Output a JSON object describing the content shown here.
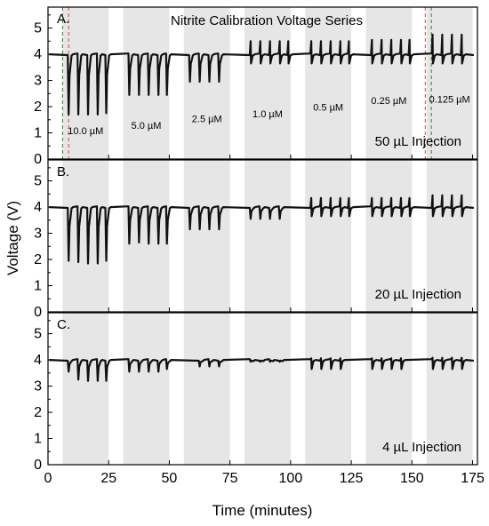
{
  "chart_data": [
    {
      "type": "line",
      "panel": "A.",
      "title": "Nitrite Calibration Voltage Series",
      "injection_label": "50 µL Injection",
      "xlabel": "Time (minutes)",
      "ylabel": "Voltage (V)",
      "xlim": [
        0,
        177
      ],
      "ylim": [
        0,
        5.8
      ],
      "yticks": [
        "0",
        "1",
        "2",
        "3",
        "4",
        "5"
      ],
      "baseline": 4.0,
      "shaded_windows": [
        [
          6,
          25
        ],
        [
          31,
          50
        ],
        [
          56,
          75
        ],
        [
          81,
          100
        ],
        [
          106,
          125
        ],
        [
          131,
          150
        ],
        [
          156,
          175
        ]
      ],
      "concentration_labels": [
        {
          "x": 15.5,
          "y": 0.95,
          "text": "10.0 µM"
        },
        {
          "x": 40.5,
          "y": 1.15,
          "text": "5.0 µM"
        },
        {
          "x": 65.5,
          "y": 1.4,
          "text": "2.5 µM"
        },
        {
          "x": 90.5,
          "y": 1.6,
          "text": "1.0 µM"
        },
        {
          "x": 115.5,
          "y": 1.85,
          "text": "0.5 µM"
        },
        {
          "x": 140.5,
          "y": 2.1,
          "text": "0.25 µM"
        },
        {
          "x": 165.5,
          "y": 2.15,
          "text": "0.125 µM"
        }
      ],
      "dashed_markers": [
        {
          "x": 6.0,
          "color": "#3a7d3a"
        },
        {
          "x": 8.5,
          "color": "#c0504d"
        },
        {
          "x": 155.5,
          "color": "#c0504d"
        },
        {
          "x": 158.0,
          "color": "#3a7d3a"
        }
      ],
      "peak_series": [
        {
          "label": "10.0 µM",
          "times": [
            8.5,
            12.5,
            16.5,
            20.5,
            24.0
          ],
          "values": [
            1.7,
            1.7,
            1.7,
            1.7,
            1.75
          ]
        },
        {
          "label": "5.0 µM",
          "times": [
            33.5,
            37.5,
            41.5,
            45.5,
            49.0
          ],
          "values": [
            2.45,
            2.45,
            2.45,
            2.45,
            2.45
          ]
        },
        {
          "label": "2.5 µM",
          "times": [
            58.5,
            62.5,
            66.5,
            70.5
          ],
          "values": [
            2.95,
            2.95,
            2.95,
            2.95
          ]
        },
        {
          "label": "1.0 µM",
          "times": [
            83.5,
            87.5,
            91.5,
            95.5,
            99.0
          ],
          "values": [
            4.5,
            4.5,
            4.5,
            4.5,
            4.5
          ]
        },
        {
          "label": "0.5 µM",
          "times": [
            108.5,
            112.5,
            116.5,
            120.5,
            124.0
          ],
          "values": [
            4.5,
            4.5,
            4.5,
            4.5,
            4.5
          ]
        },
        {
          "label": "0.25 µM",
          "times": [
            133.5,
            137.5,
            141.5,
            145.5,
            149.0
          ],
          "values": [
            4.55,
            4.55,
            4.55,
            4.55,
            4.55
          ]
        },
        {
          "label": "0.125 µM",
          "times": [
            158.5,
            162.5,
            166.5,
            170.5
          ],
          "values": [
            4.75,
            4.75,
            4.75,
            4.75
          ]
        }
      ]
    },
    {
      "type": "line",
      "panel": "B.",
      "injection_label": "20 µL Injection",
      "xlim": [
        0,
        177
      ],
      "ylim": [
        0,
        5.8
      ],
      "yticks": [
        "0",
        "1",
        "2",
        "3",
        "4",
        "5"
      ],
      "baseline": 4.0,
      "shaded_windows": [
        [
          6,
          25
        ],
        [
          31,
          50
        ],
        [
          56,
          75
        ],
        [
          81,
          100
        ],
        [
          106,
          125
        ],
        [
          131,
          150
        ],
        [
          156,
          175
        ]
      ],
      "peak_series": [
        {
          "label": "10.0 µM",
          "times": [
            8.5,
            12.5,
            16.5,
            20.5,
            24.0
          ],
          "values": [
            1.95,
            1.9,
            1.85,
            1.85,
            1.95
          ]
        },
        {
          "label": "5.0 µM",
          "times": [
            33.5,
            37.5,
            41.5,
            45.5,
            49.0
          ],
          "values": [
            2.6,
            2.65,
            2.6,
            2.6,
            2.6
          ]
        },
        {
          "label": "2.5 µM",
          "times": [
            58.5,
            62.5,
            66.5,
            70.5
          ],
          "values": [
            3.15,
            3.15,
            3.15,
            3.15
          ]
        },
        {
          "label": "1.0 µM",
          "times": [
            83.5,
            87.5,
            91.5,
            95.5
          ],
          "values": [
            3.55,
            3.55,
            3.55,
            3.55
          ]
        },
        {
          "label": "0.5 µM",
          "times": [
            108.5,
            112.5,
            116.5,
            120.5,
            124.0
          ],
          "values": [
            4.35,
            4.35,
            4.35,
            4.35,
            4.35
          ]
        },
        {
          "label": "0.25 µM",
          "times": [
            133.5,
            137.5,
            141.5,
            145.5,
            149.0
          ],
          "values": [
            4.35,
            4.35,
            4.35,
            4.35,
            4.35
          ]
        },
        {
          "label": "0.125 µM",
          "times": [
            158.5,
            162.5,
            166.5,
            170.5
          ],
          "values": [
            4.45,
            4.45,
            4.45,
            4.45
          ]
        }
      ]
    },
    {
      "type": "line",
      "panel": "C.",
      "injection_label": "4 µL Injection",
      "xlim": [
        0,
        177
      ],
      "ylim": [
        0,
        5.8
      ],
      "yticks": [
        "0",
        "1",
        "2",
        "3",
        "4",
        "5"
      ],
      "xticks": [
        "0",
        "25",
        "50",
        "75",
        "100",
        "125",
        "150",
        "175"
      ],
      "baseline": 4.0,
      "shaded_windows": [
        [
          6,
          25
        ],
        [
          31,
          50
        ],
        [
          56,
          75
        ],
        [
          81,
          100
        ],
        [
          106,
          125
        ],
        [
          131,
          150
        ],
        [
          156,
          175
        ]
      ],
      "peak_series": [
        {
          "label": "10.0 µM",
          "times": [
            8.5,
            12.5,
            16.5,
            20.5,
            24.0
          ],
          "values": [
            3.55,
            3.25,
            3.2,
            3.2,
            3.2
          ]
        },
        {
          "label": "5.0 µM",
          "times": [
            33.5,
            37.5,
            41.5,
            45.5,
            49.0
          ],
          "values": [
            3.55,
            3.55,
            3.55,
            3.55,
            3.65
          ]
        },
        {
          "label": "2.5 µM",
          "times": [
            62.5,
            66.5,
            70.5
          ],
          "values": [
            3.75,
            3.75,
            3.75
          ]
        },
        {
          "label": "1.0 µM",
          "times": [
            83.5,
            87.5,
            91.5,
            95.5
          ],
          "values": [
            3.93,
            3.93,
            3.93,
            3.93
          ]
        },
        {
          "label": "0.5 µM",
          "times": [
            108.5,
            112.5,
            116.5,
            120.5
          ],
          "values": [
            4.06,
            4.06,
            4.06,
            4.06
          ]
        },
        {
          "label": "0.25 µM",
          "times": [
            133.5,
            137.5,
            141.5,
            145.5
          ],
          "values": [
            4.06,
            4.06,
            4.06,
            4.06
          ]
        },
        {
          "label": "0.125 µM",
          "times": [
            158.5,
            162.5,
            166.5,
            170.5
          ],
          "values": [
            4.08,
            4.08,
            4.08,
            4.08
          ]
        }
      ]
    }
  ],
  "colors": {
    "trace": "#111111",
    "shade": "#e6e6e6",
    "axis": "#000000"
  }
}
